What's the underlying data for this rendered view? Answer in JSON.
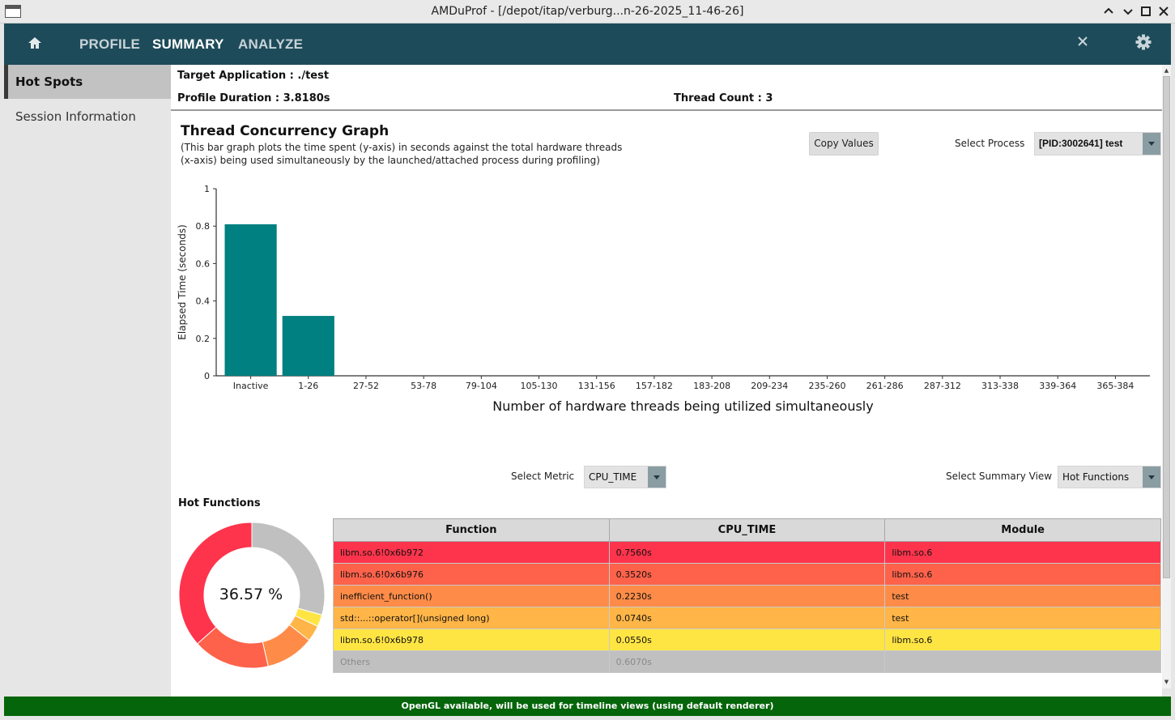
{
  "window": {
    "title": "AMDuProf - [/depot/itap/verburg...n-26-2025_11-46-26]"
  },
  "nav": {
    "tabs": [
      "PROFILE",
      "SUMMARY",
      "ANALYZE"
    ]
  },
  "sidebar": {
    "items": [
      {
        "label": "Hot Spots"
      },
      {
        "label": "Session Information"
      }
    ]
  },
  "summary": {
    "target": "Target Application : ./test",
    "duration": "Profile Duration : 3.8180s",
    "threads": "Thread Count : 3"
  },
  "graph": {
    "title": "Thread Concurrency Graph",
    "desc_line1": "(This bar graph plots the time spent (y-axis) in seconds against the total hardware threads",
    "desc_line2": "(x-axis) being used simultaneously by the launched/attached process during profiling)",
    "copy_label": "Copy Values",
    "select_process_label": "Select Process",
    "process_value": "[PID:3002641] test"
  },
  "chart_data": {
    "type": "bar",
    "categories": [
      "Inactive",
      "1-26",
      "27-52",
      "53-78",
      "79-104",
      "105-130",
      "131-156",
      "157-182",
      "183-208",
      "209-234",
      "235-260",
      "261-286",
      "287-312",
      "313-338",
      "339-364",
      "365-384"
    ],
    "values": [
      0.81,
      0.32,
      0,
      0,
      0,
      0,
      0,
      0,
      0,
      0,
      0,
      0,
      0,
      0,
      0,
      0
    ],
    "ylabel": "Elapsed Time (seconds)",
    "xlabel": "Number of hardware threads being utilized simultaneously",
    "ylim": [
      0,
      1
    ],
    "yticks": [
      "0",
      "0.2",
      "0.4",
      "0.6",
      "0.8",
      "1"
    ],
    "bar_color": "#008080"
  },
  "controls": {
    "metric_label": "Select Metric",
    "metric_value": "CPU_TIME",
    "view_label": "Select Summary View",
    "view_value": "Hot Functions"
  },
  "hot": {
    "title": "Hot Functions",
    "donut_label": "36.57 %",
    "columns": [
      "Function",
      "CPU_TIME",
      "Module"
    ],
    "rows": [
      {
        "function": "libm.so.6!0x6b972",
        "cpu": "0.7560s",
        "module": "libm.so.6",
        "color": "#fe344c"
      },
      {
        "function": "libm.so.6!0x6b976",
        "cpu": "0.3520s",
        "module": "libm.so.6",
        "color": "#fe624a"
      },
      {
        "function": "inefficient_function()",
        "cpu": "0.2230s",
        "module": "test",
        "color": "#fe8c48"
      },
      {
        "function": "std::...::operator[](unsigned long)",
        "cpu": "0.0740s",
        "module": "test",
        "color": "#ffb547"
      },
      {
        "function": "libm.so.6!0x6b978",
        "cpu": "0.0550s",
        "module": "libm.so.6",
        "color": "#ffe544"
      },
      {
        "function": "Others",
        "cpu": "0.6070s",
        "module": "",
        "color": "#c0c0c0"
      }
    ]
  },
  "status": "OpenGL available, will be used for timeline views (using default renderer)"
}
